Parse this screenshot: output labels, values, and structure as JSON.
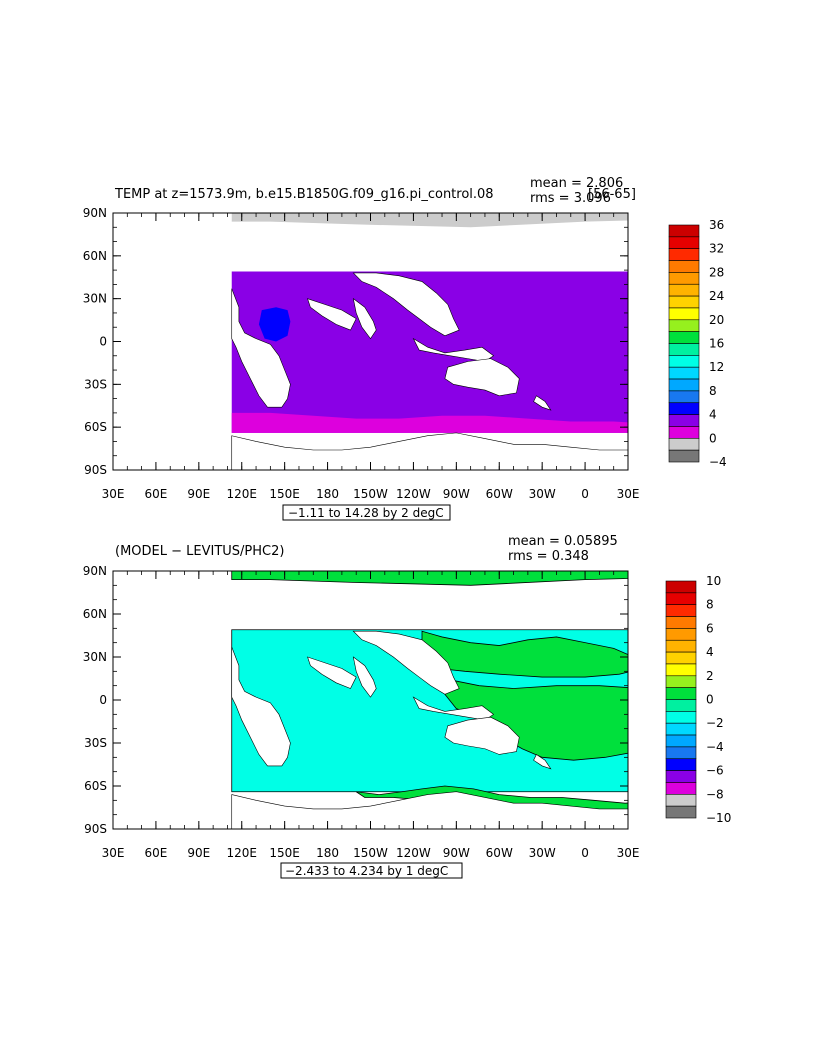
{
  "panels": [
    {
      "title": "TEMP at z=1573.9m, b.e15.B1850G.f09_g16.pi_control.08",
      "title_tail": "[56-65]",
      "mean_text": "mean = 2.806",
      "rms_text": "rms = 3.096",
      "range_text": "−1.11 to 14.28 by 2 degC",
      "lat_ticks": [
        "90N",
        "60N",
        "30N",
        "0",
        "30S",
        "60S",
        "90S"
      ],
      "lon_ticks": [
        "30E",
        "60E",
        "90E",
        "120E",
        "150E",
        "180",
        "150W",
        "120W",
        "90W",
        "60W",
        "30W",
        "0",
        "30E"
      ],
      "colorbar": {
        "labels": [
          "36",
          "32",
          "28",
          "24",
          "20",
          "16",
          "12",
          "8",
          "4",
          "0",
          "−4"
        ],
        "colors": [
          "#cc0000",
          "#e60000",
          "#ff2a00",
          "#ff7a00",
          "#ff9a00",
          "#ffb300",
          "#ffd200",
          "#ffff00",
          "#96f01e",
          "#00e03c",
          "#00f0a0",
          "#00ffe6",
          "#00d8ff",
          "#00a8ff",
          "#1878f0",
          "#0000ff",
          "#8a00e6",
          "#dd00dd",
          "#cccccc",
          "#777777"
        ]
      },
      "land_color": "#ffffff",
      "ocean_fields": [
        {
          "name": "arctic",
          "color": "#cccccc"
        },
        {
          "name": "deep-ocean",
          "color": "#8a00e6"
        },
        {
          "name": "north-atlantic",
          "color": "#0000ff"
        },
        {
          "name": "arabian-sea",
          "color": "#0000ff"
        },
        {
          "name": "southern-ocean",
          "color": "#dd00dd"
        }
      ]
    },
    {
      "title": "(MODEL − LEVITUS/PHC2)",
      "title_tail": "",
      "mean_text": "mean = 0.05895",
      "rms_text": "rms = 0.348",
      "range_text": "−2.433 to 4.234 by 1 degC",
      "lat_ticks": [
        "90N",
        "60N",
        "30N",
        "0",
        "30S",
        "60S",
        "90S"
      ],
      "lon_ticks": [
        "30E",
        "60E",
        "90E",
        "120E",
        "150E",
        "180",
        "150W",
        "120W",
        "90W",
        "60W",
        "30W",
        "0",
        "30E"
      ],
      "colorbar": {
        "labels": [
          "10",
          "8",
          "6",
          "4",
          "2",
          "0",
          "−2",
          "−4",
          "−6",
          "−8",
          "−10"
        ],
        "colors": [
          "#cc0000",
          "#e60000",
          "#ff2a00",
          "#ff7a00",
          "#ff9a00",
          "#ffb300",
          "#ffd200",
          "#ffff00",
          "#96f01e",
          "#00e03c",
          "#00f0a0",
          "#00ffe6",
          "#00d8ff",
          "#00a8ff",
          "#1878f0",
          "#0000ff",
          "#8a00e6",
          "#dd00dd",
          "#cccccc",
          "#777777"
        ]
      },
      "land_color": "#ffffff",
      "ocean_fields": [
        {
          "name": "positive-anomaly",
          "color": "#00e03c"
        },
        {
          "name": "near-zero-anomaly",
          "color": "#00ffe6"
        },
        {
          "name": "strong-positive-anomaly",
          "color": "#96f01e"
        }
      ]
    }
  ]
}
